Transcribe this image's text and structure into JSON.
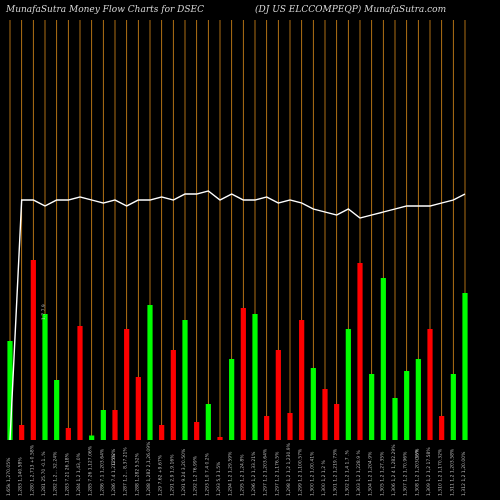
{
  "header": {
    "left": "MunafaSutra  Money Flow  Charts for DSEC",
    "right": "(DJ US ELCCOMPEQP) MunafaSutra.com"
  },
  "colors": {
    "background": "#000000",
    "up": "#00ff00",
    "down": "#ff0000",
    "grid": "#d98a1a",
    "price_line": "#ffffff"
  },
  "chart_data": {
    "type": "bar",
    "series": [
      {
        "values": [
          33,
          5,
          60,
          42,
          20,
          4,
          38,
          1.5,
          10,
          10,
          37,
          21,
          45,
          5,
          30,
          40,
          6,
          12,
          1,
          27,
          44,
          42,
          8,
          30,
          9,
          40,
          24,
          17,
          12,
          37,
          59,
          22,
          54,
          14,
          23,
          27,
          37,
          8,
          22,
          49
        ],
        "colors": [
          "up",
          "down",
          "down",
          "up",
          "up",
          "down",
          "down",
          "up",
          "up",
          "down",
          "down",
          "down",
          "up",
          "down",
          "down",
          "up",
          "down",
          "up",
          "down",
          "up",
          "down",
          "up",
          "down",
          "down",
          "down",
          "down",
          "up",
          "down",
          "down",
          "up",
          "down",
          "up",
          "up",
          "up",
          "up",
          "up",
          "down",
          "down",
          "up",
          "up"
        ]
      },
      {
        "values": [
          0,
          80,
          80,
          78,
          80,
          80,
          81,
          80,
          79,
          80,
          78,
          80,
          80,
          81,
          80,
          82,
          82,
          83,
          80,
          82,
          80,
          80,
          81,
          79,
          80,
          79,
          77,
          76,
          75,
          77,
          74,
          75,
          76,
          77,
          78,
          78,
          78,
          79,
          80,
          82
        ]
      }
    ],
    "categories": [
      "1.65k 1,270.05%",
      "1,283 1,140.58%",
      "1,280 1,2,713 +0.58%",
      "1,281 25.70 -0.1..%",
      "1,282 1,2... 32.24%",
      "1,283 7.21 26.18%",
      "1,284 1,2 1,43,.0%",
      "1,285 7.26 1,127.06%",
      "1,286 7.1 1,203.64%",
      "1,286 7.4 1,212.02%",
      "1,287 1,2... 8,37.21%",
      "1,288 1,282 5.52%",
      "1,288 1,282 2,1,26.09%",
      "1,29 7.62 +9.67%",
      "1,291 2,9 1,9.16%",
      "1,291 9.24 3,20.50%",
      "1,292 1,2 76.99%",
      "1,293 1,0 7.4 0.2%",
      "1,293 5,3 1.5%",
      "1,294 1,2 1,29.59%",
      "1,295 1,2 1,24.8%",
      "1,296 1,2 1,33.21%",
      "1,297 1,2 1,203.64%",
      "1,297 1,2 1,176.5%",
      "1,298 1,2 1,2 1,230.9%",
      "1,299 1,2 1,100.57%",
      "1,300 1,2 1,00.41%",
      "1,300 1,2 1,2 %",
      "1,301 1,2 1,219.73%",
      "1,302 1,2 1,4 1.7 .%",
      "1,303 1,2 1,228.9 %",
      "1,304 1,2 1,204.9%",
      "1,305 1,2 1,27.35%",
      "1,306 1,2 4 1,282.29%",
      "1,307 1,2 1,70.96%",
      "1,308 1,2 1,203.36%",
      "1,309 1,2 1,2 17.58%",
      "1,310 1,2 1,170.32%",
      "1,311 1,2 1,203.58%",
      "1,312 1,2 1,20.00%"
    ],
    "annotations": [
      "1,7 7.9",
      "0.5%",
      "0.5%"
    ]
  }
}
